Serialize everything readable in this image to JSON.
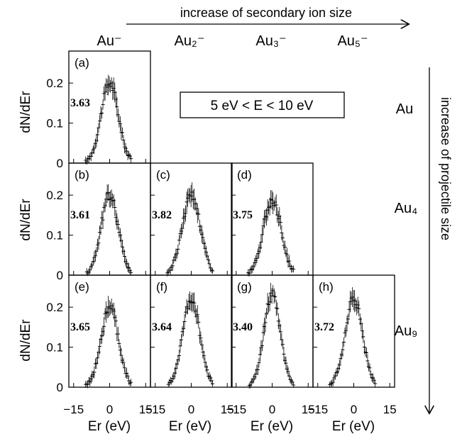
{
  "figure": {
    "top_arrow_label": "increase of secondary ion size",
    "right_arrow_label": "increase of projectile size",
    "energy_box": "5 eV < E < 10 eV",
    "columns": [
      "Au⁻",
      "Au₂⁻",
      "Au₃⁻",
      "Au₅⁻"
    ],
    "rows": [
      "Au",
      "Au₄",
      "Au₉"
    ],
    "y_axis_label": "dN/dEr",
    "x_axis_label": "Er (eV)",
    "y_ticks": [
      "0",
      "0.1",
      "0.2"
    ],
    "x_ticks": [
      "-15",
      "0",
      "15"
    ]
  },
  "chart_data": {
    "type": "scatter",
    "xlabel": "Er (eV)",
    "ylabel": "dN/dEr",
    "xlim": [
      -17,
      17
    ],
    "ylim": [
      0,
      0.28
    ],
    "panels": [
      {
        "label": "(a)",
        "row": 0,
        "col": 0,
        "value_label": "3.63",
        "sigma": 3.63,
        "peak": 0.2
      },
      {
        "label": "(b)",
        "row": 1,
        "col": 0,
        "value_label": "3.61",
        "sigma": 3.61,
        "peak": 0.2
      },
      {
        "label": "(c)",
        "row": 1,
        "col": 1,
        "value_label": "3.82",
        "sigma": 3.82,
        "peak": 0.2
      },
      {
        "label": "(d)",
        "row": 1,
        "col": 2,
        "value_label": "3.75",
        "sigma": 3.75,
        "peak": 0.19
      },
      {
        "label": "(e)",
        "row": 2,
        "col": 0,
        "value_label": "3.65",
        "sigma": 3.65,
        "peak": 0.2
      },
      {
        "label": "(f)",
        "row": 2,
        "col": 1,
        "value_label": "3.64",
        "sigma": 3.64,
        "peak": 0.22
      },
      {
        "label": "(g)",
        "row": 2,
        "col": 2,
        "value_label": "3.40",
        "sigma": 3.4,
        "peak": 0.23
      },
      {
        "label": "(h)",
        "row": 2,
        "col": 3,
        "value_label": "3.72",
        "sigma": 3.72,
        "peak": 0.22
      }
    ]
  }
}
